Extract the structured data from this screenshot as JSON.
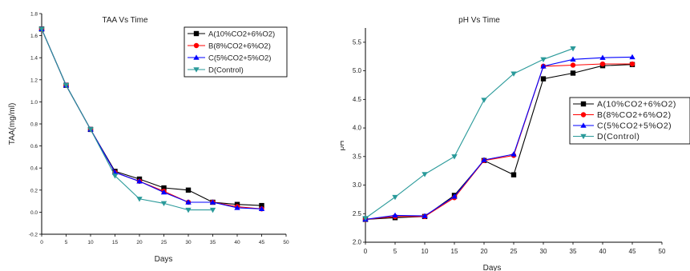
{
  "chart_data": [
    {
      "type": "line",
      "title": "TAA Vs Time",
      "xlabel": "Days",
      "ylabel": "TAA(mg/ml)",
      "xlim": [
        0,
        50
      ],
      "ylim": [
        -0.2,
        1.8
      ],
      "xticks": [
        "0",
        "5",
        "10",
        "15",
        "20",
        "25",
        "30",
        "35",
        "40",
        "45",
        "50"
      ],
      "yticks": [
        "-0.2",
        "0.0",
        "0.2",
        "0.4",
        "0.6",
        "0.8",
        "1.0",
        "1.2",
        "1.4",
        "1.6",
        "1.8"
      ],
      "legend_position": "top-right",
      "series": [
        {
          "name": "A(10%CO2+6%O2)",
          "color": "#000000",
          "marker": "square",
          "x": [
            0,
            5,
            10,
            15,
            20,
            25,
            30,
            35,
            40,
            45
          ],
          "y": [
            1.66,
            1.15,
            0.75,
            0.37,
            0.3,
            0.22,
            0.2,
            0.09,
            0.07,
            0.06
          ]
        },
        {
          "name": "B(8%CO2+6%O2)",
          "color": "#ff0000",
          "marker": "circle",
          "x": [
            0,
            5,
            10,
            15,
            20,
            25,
            30,
            35,
            40,
            45
          ],
          "y": [
            1.66,
            1.15,
            0.75,
            0.36,
            0.28,
            0.19,
            0.09,
            0.09,
            0.05,
            0.03
          ]
        },
        {
          "name": "C(5%CO2+5%O2)",
          "color": "#0000ff",
          "marker": "triangle-up",
          "x": [
            0,
            5,
            10,
            15,
            20,
            25,
            30,
            35,
            40,
            45
          ],
          "y": [
            1.66,
            1.15,
            0.75,
            0.36,
            0.28,
            0.18,
            0.09,
            0.09,
            0.04,
            0.03
          ]
        },
        {
          "name": "D(Control)",
          "color": "#2a9a9a",
          "marker": "triangle-down",
          "x": [
            0,
            5,
            10,
            15,
            20,
            25,
            30,
            35
          ],
          "y": [
            1.66,
            1.15,
            0.75,
            0.33,
            0.12,
            0.08,
            0.02,
            0.02
          ]
        }
      ]
    },
    {
      "type": "line",
      "title": "pH Vs Time",
      "xlabel": "Days",
      "ylabel": "pH",
      "xlim": [
        0,
        50
      ],
      "ylim": [
        2.0,
        5.75
      ],
      "xticks": [
        "0",
        "5",
        "10",
        "15",
        "20",
        "25",
        "30",
        "35",
        "40",
        "45",
        "50"
      ],
      "yticks": [
        "2.0",
        "2.5",
        "3.0",
        "3.5",
        "4.0",
        "4.5",
        "5.0",
        "5.5"
      ],
      "legend_position": "right",
      "series": [
        {
          "name": "A(10%CO2+6%O2)",
          "color": "#000000",
          "marker": "square",
          "x": [
            0,
            5,
            10,
            15,
            20,
            25,
            30,
            35,
            40,
            45
          ],
          "y": [
            2.4,
            2.43,
            2.45,
            2.82,
            3.43,
            3.18,
            4.86,
            4.96,
            5.09,
            5.11
          ]
        },
        {
          "name": "B(8%CO2+6%O2)",
          "color": "#ff0000",
          "marker": "circle",
          "x": [
            0,
            5,
            10,
            15,
            20,
            25,
            30,
            35,
            40,
            45
          ],
          "y": [
            2.4,
            2.45,
            2.45,
            2.78,
            3.43,
            3.52,
            5.08,
            5.1,
            5.12,
            5.12
          ]
        },
        {
          "name": "C(5%CO2+5%O2)",
          "color": "#0000ff",
          "marker": "triangle-up",
          "x": [
            0,
            5,
            10,
            15,
            20,
            25,
            30,
            35,
            40,
            45
          ],
          "y": [
            2.4,
            2.47,
            2.46,
            2.8,
            3.44,
            3.54,
            5.08,
            5.2,
            5.23,
            5.24
          ]
        },
        {
          "name": "D(Control)",
          "color": "#2a9a9a",
          "marker": "triangle-down",
          "x": [
            0,
            5,
            10,
            15,
            20,
            25,
            30,
            35
          ],
          "y": [
            2.42,
            2.79,
            3.19,
            3.5,
            4.49,
            4.95,
            5.2,
            5.39
          ]
        }
      ]
    }
  ]
}
